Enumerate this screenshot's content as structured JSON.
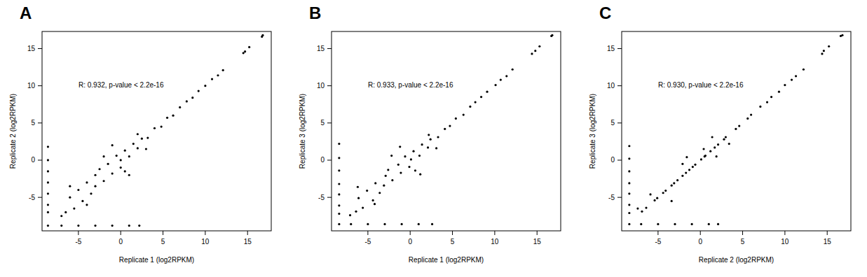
{
  "chart_data": [
    {
      "type": "scatter",
      "title": "A",
      "annotation": "R: 0.932, p-value < 2.2e-16",
      "x_label": "Replicate 1 (log2RPKM)",
      "y_label": "Replicate 2 (log2RPKM)",
      "color": "#000000",
      "marker": "dot",
      "grid": false,
      "xlim": [
        -9.3,
        17.8
      ],
      "ylim": [
        -9.5,
        17.3
      ],
      "xticks": [
        -5,
        0,
        5,
        10,
        15
      ],
      "yticks": [
        -5,
        0,
        5,
        10,
        15
      ],
      "x": [
        16.8,
        16.7,
        15.2,
        14.7,
        14.5,
        12.1,
        11.5,
        10.8,
        10,
        9.2,
        8.5,
        7.8,
        7,
        6.2,
        5.5,
        4.8,
        4,
        3.2,
        2.5,
        2,
        1.5,
        1,
        0.5,
        0,
        0,
        -0.5,
        -1,
        -1.5,
        -2,
        -2.5,
        -3,
        -3,
        -3.5,
        -4,
        -4.5,
        -5,
        -5.5,
        -6,
        -6.5,
        -2,
        -1,
        1,
        2,
        3,
        -4,
        -6,
        0.5,
        -7,
        -8.6,
        -8.6,
        -8.6,
        -8.6,
        -8.6,
        -8.6,
        -8.6,
        -8.6,
        -7,
        -5,
        -3,
        -1,
        1,
        2.2
      ],
      "y": [
        16.8,
        16.6,
        15.2,
        14.6,
        14.4,
        12.1,
        11.4,
        10.9,
        10,
        9.3,
        8.4,
        7.9,
        7.1,
        6,
        5.7,
        4.5,
        4.3,
        3,
        2.9,
        1.6,
        2.2,
        0.5,
        1.3,
        0,
        -1,
        0.6,
        -1.8,
        -0.5,
        -2.8,
        -1.2,
        -3.5,
        -2,
        -4.5,
        -3,
        -5.5,
        -4,
        -6.5,
        -5,
        -7,
        0.5,
        2,
        -2,
        3.5,
        1.5,
        -6,
        -3.5,
        -1.5,
        -7.5,
        1.8,
        0,
        -1.5,
        -3,
        -4.5,
        -6,
        -7,
        -8.8,
        -8.8,
        -8.8,
        -8.8,
        -8.8,
        -8.8,
        -8.8
      ]
    },
    {
      "type": "scatter",
      "title": "B",
      "annotation": "R: 0.933, p-value < 2.2e-16",
      "x_label": "Replicate 1 (log2RPKM)",
      "y_label": "Replicate 3 (log2RPKM)",
      "color": "#000000",
      "marker": "dot",
      "grid": false,
      "xlim": [
        -9.3,
        17.8
      ],
      "ylim": [
        -9.5,
        17.3
      ],
      "xticks": [
        -5,
        0,
        5,
        10,
        15
      ],
      "yticks": [
        -5,
        0,
        5,
        10,
        15
      ],
      "x": [
        16.8,
        16.7,
        15.3,
        14.8,
        14.4,
        12.1,
        11.4,
        10.7,
        10.1,
        9.1,
        8.4,
        7.7,
        7.1,
        6.3,
        5.4,
        4.7,
        4.1,
        3.3,
        2.4,
        2.1,
        1.4,
        1.1,
        0.4,
        0.1,
        -0.1,
        -0.6,
        -1.1,
        -1.4,
        -2.1,
        -2.6,
        -3.1,
        -2.9,
        -3.6,
        -4.1,
        -4.4,
        -5.1,
        -5.6,
        -6.1,
        -6.4,
        -2.2,
        -1.2,
        1.2,
        2.2,
        3.1,
        -4.2,
        -6.2,
        0.6,
        -7.1,
        -8.4,
        -8.4,
        -8.4,
        -8.4,
        -8.4,
        -8.4,
        -8.4,
        -8.4,
        -7,
        -5,
        -3,
        -1,
        1,
        2.6
      ],
      "y": [
        16.8,
        16.7,
        15.3,
        14.7,
        14.3,
        12.2,
        11.3,
        10.8,
        10.1,
        9.2,
        8.5,
        7.8,
        7.2,
        6.1,
        5.6,
        4.6,
        4.2,
        3.1,
        2.8,
        1.7,
        2.1,
        0.6,
        1.2,
        0.1,
        -0.9,
        0.5,
        -1.7,
        -0.6,
        -2.7,
        -1.3,
        -3.4,
        -2.1,
        -4.4,
        -3.1,
        -5.4,
        -4.1,
        -6.4,
        -5.1,
        -6.9,
        0.6,
        1.8,
        -1.9,
        3.4,
        1.6,
        -5.9,
        -3.6,
        -1.4,
        -7.4,
        2.2,
        0.3,
        -1.4,
        -3.2,
        -4.6,
        -6.1,
        -7.2,
        -8.6,
        -8.6,
        -8.6,
        -8.6,
        -8.6,
        -8.6,
        -8.6
      ]
    },
    {
      "type": "scatter",
      "title": "C",
      "annotation": "R: 0.930, p-value < 2.2e-16",
      "x_label": "Replicate 2 (log2RPKM)",
      "y_label": "Replicate 3 (log2RPKM)",
      "color": "#000000",
      "marker": "dot",
      "grid": false,
      "xlim": [
        -9.3,
        17.8
      ],
      "ylim": [
        -9.5,
        17.3
      ],
      "xticks": [
        -5,
        0,
        5,
        10,
        15
      ],
      "yticks": [
        -5,
        0,
        5,
        10,
        15
      ],
      "x": [
        16.8,
        16.6,
        15.2,
        14.6,
        14.4,
        12.2,
        11.3,
        10.8,
        10,
        9.3,
        8.4,
        7.9,
        7.1,
        6,
        5.6,
        4.6,
        4.2,
        3,
        2.8,
        1.7,
        2.1,
        0.6,
        1.2,
        0.1,
        -0.9,
        0.5,
        -1.7,
        -0.6,
        -2.7,
        -1.3,
        -3.4,
        -2.1,
        -4.4,
        -3.1,
        -5.4,
        -4.1,
        -6.4,
        -5.1,
        -6.9,
        0.4,
        1.9,
        -2.1,
        3.4,
        1.4,
        -5.9,
        -3.4,
        -1.6,
        -7.4,
        -8.4,
        -8.4,
        -8.4,
        -8.4,
        -8.4,
        -8.4,
        -8.4,
        -8.4,
        -7,
        -5,
        -3,
        -1,
        1,
        2.1
      ],
      "y": [
        16.8,
        16.7,
        15.3,
        14.7,
        14.3,
        12.2,
        11.3,
        10.8,
        10.1,
        9.2,
        8.5,
        7.8,
        7.2,
        6.1,
        5.6,
        4.6,
        4.2,
        3.1,
        2.8,
        1.7,
        2.1,
        0.6,
        1.2,
        0.1,
        -0.9,
        0.5,
        -1.7,
        -0.6,
        -2.7,
        -1.3,
        -3.4,
        -2.1,
        -4.4,
        -3.1,
        -5.4,
        -4.1,
        -6.4,
        -5.1,
        -6.9,
        1.5,
        0.5,
        -0.5,
        2.2,
        3.1,
        -4.6,
        -5.5,
        0.4,
        -6.5,
        1.9,
        0.2,
        -1.5,
        -3.1,
        -4.5,
        -6,
        -7.1,
        -8.6,
        -8.6,
        -8.6,
        -8.6,
        -8.6,
        -8.6,
        -8.6
      ]
    }
  ]
}
